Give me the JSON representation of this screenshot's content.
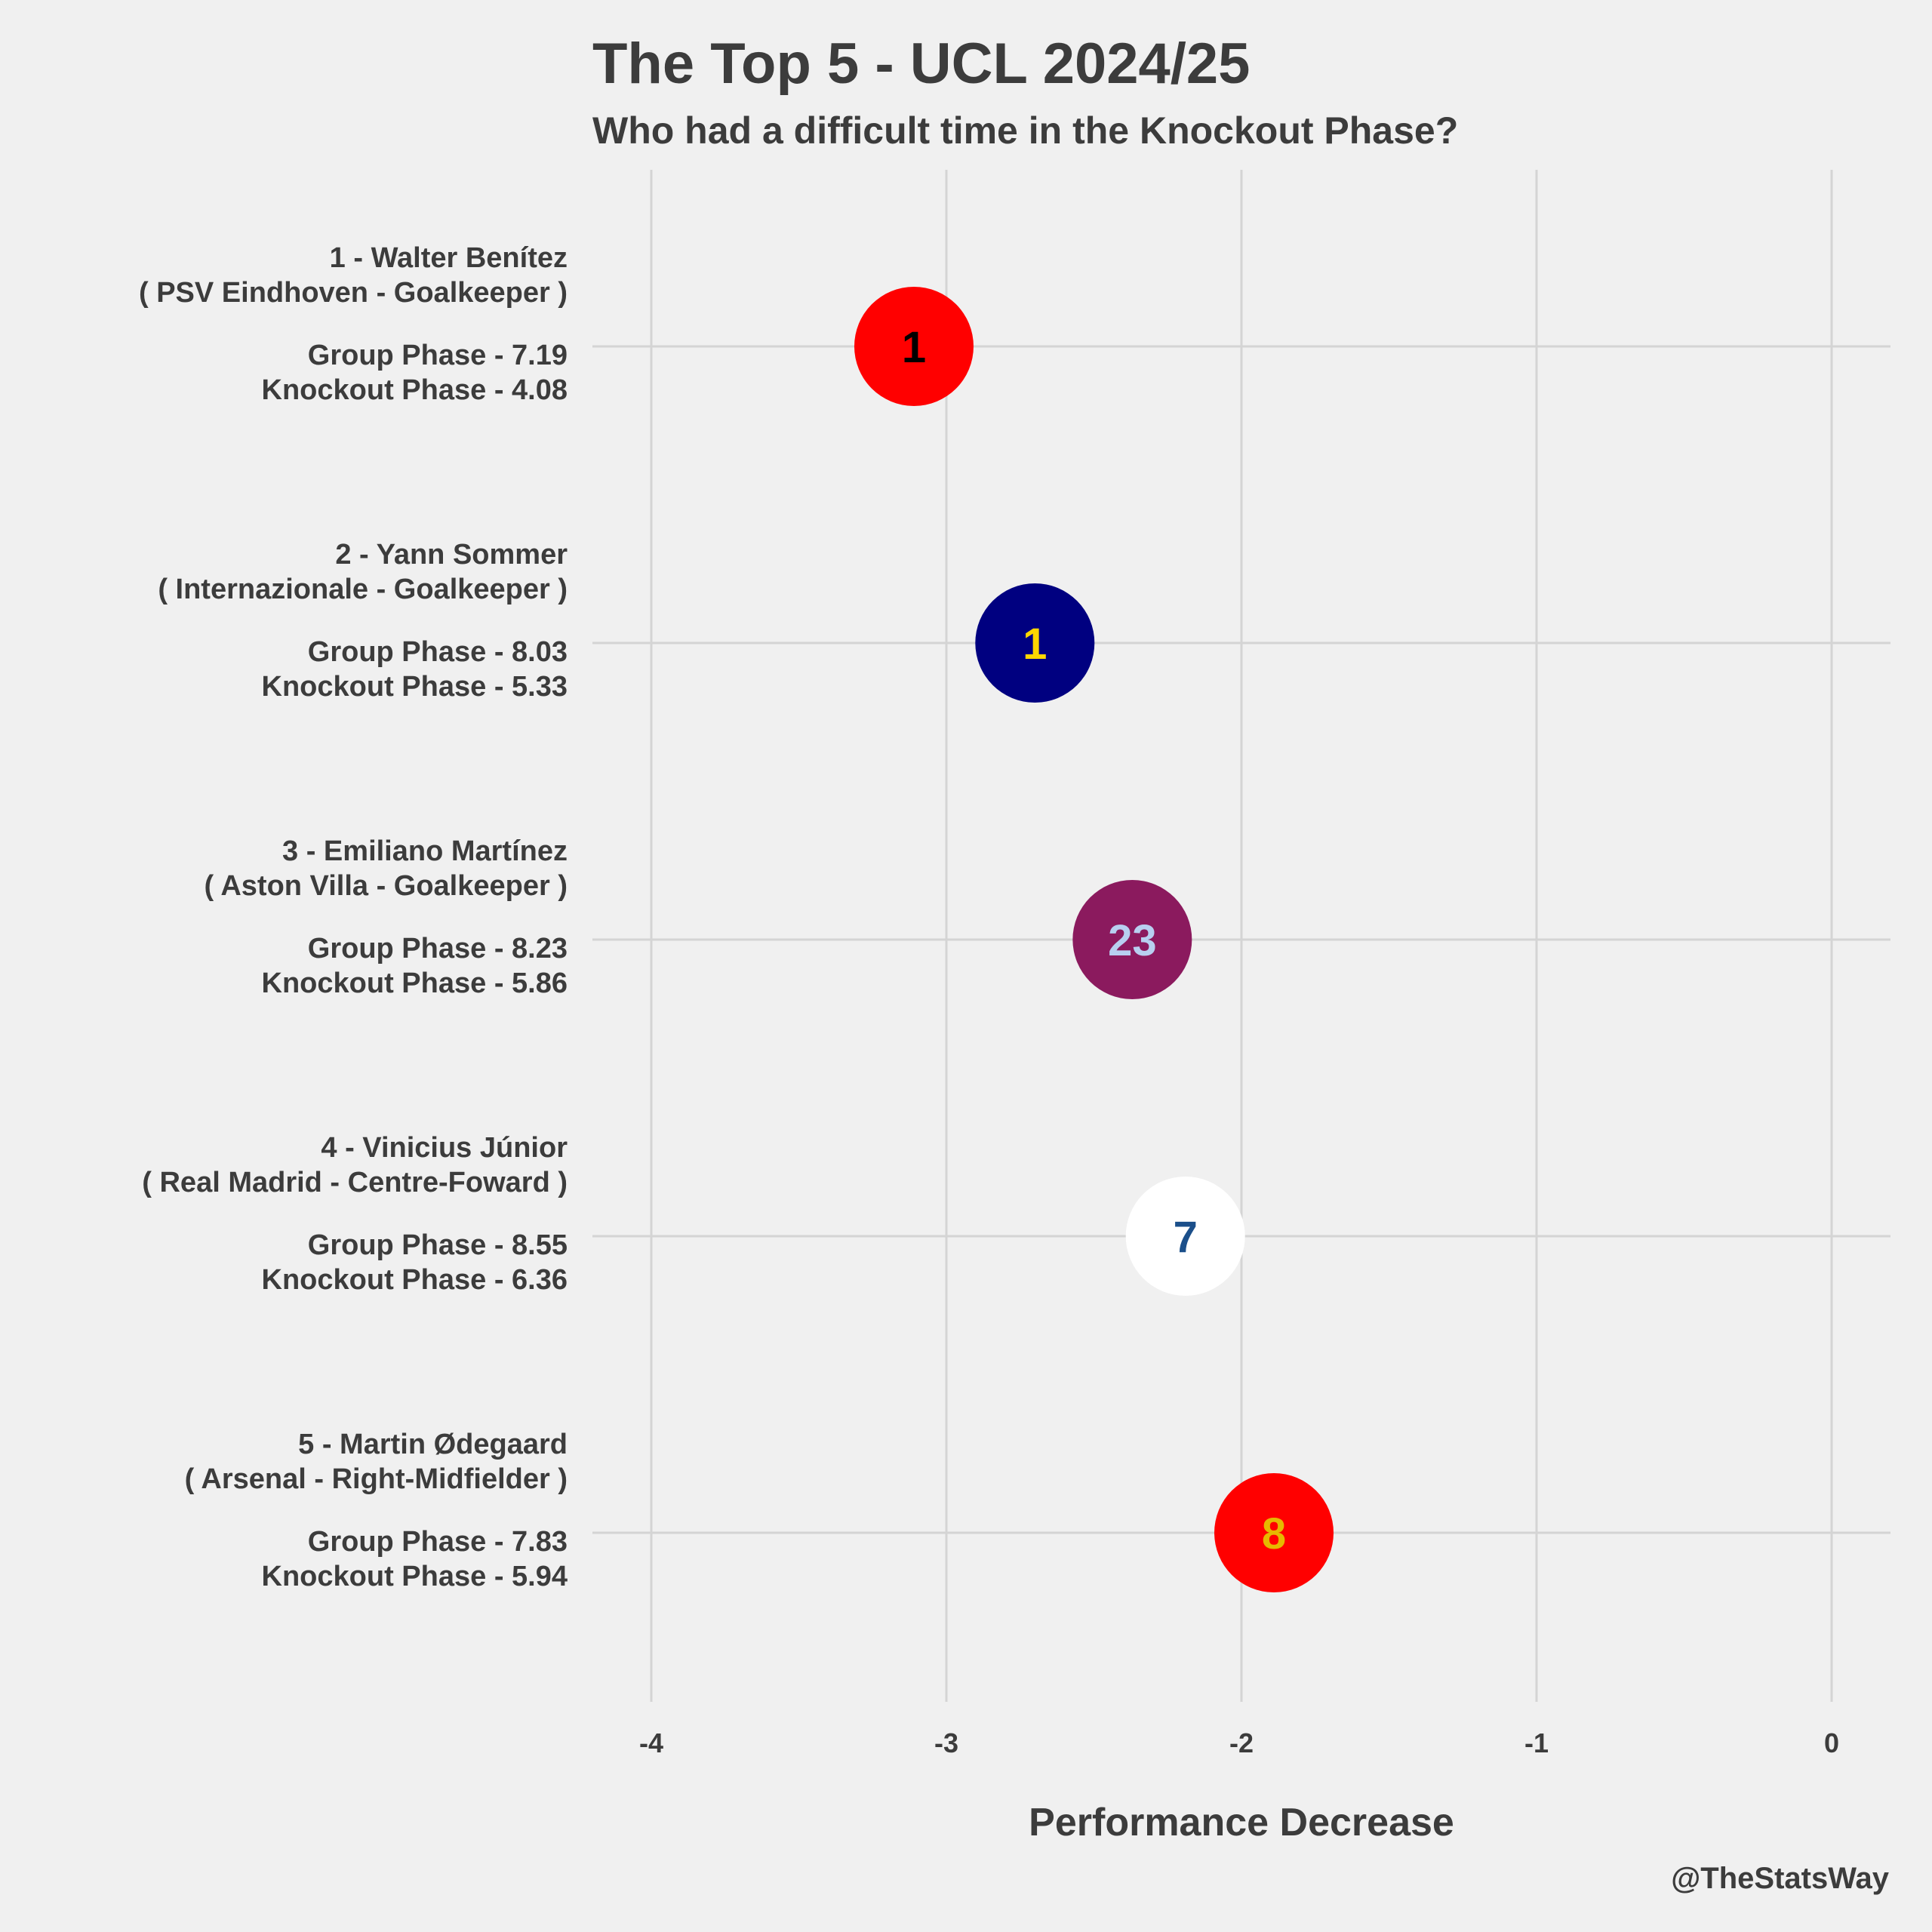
{
  "chart_data": {
    "type": "scatter",
    "title": "The Top 5 - UCL 2024/25",
    "subtitle": "Who had a difficult time in the Knockout Phase?",
    "xlabel": "Performance Decrease",
    "xlim": [
      -4.2,
      0.2
    ],
    "xticks": [
      "-4",
      "-3",
      "-2",
      "-1",
      "0"
    ],
    "xtick_values": [
      -4,
      -3,
      -2,
      -1,
      0
    ],
    "grid": true,
    "credit": "@TheStatsWay",
    "players": [
      {
        "line1": "1 - Walter Benítez",
        "line2": "( PSV Eindhoven - Goalkeeper )",
        "line3": "Group Phase - 7.19",
        "line4": "Knockout Phase - 4.08",
        "value": -3.11,
        "number": "1",
        "fill": "#ff0000",
        "text_color": "#000000"
      },
      {
        "line1": "2 - Yann Sommer",
        "line2": "( Internazionale - Goalkeeper )",
        "line3": "Group Phase - 8.03",
        "line4": "Knockout Phase - 5.33",
        "value": -2.7,
        "number": "1",
        "fill": "#000080",
        "text_color": "#ffd700"
      },
      {
        "line1": "3 - Emiliano Martínez",
        "line2": "( Aston Villa - Goalkeeper )",
        "line3": "Group Phase - 8.23",
        "line4": "Knockout Phase - 5.86",
        "value": -2.37,
        "number": "23",
        "fill": "#8b1a5e",
        "text_color": "#b8cff0"
      },
      {
        "line1": "4 - Vinicius Júnior",
        "line2": "( Real Madrid - Centre-Foward )",
        "line3": "Group Phase - 8.55",
        "line4": "Knockout Phase - 6.36",
        "value": -2.19,
        "number": "7",
        "fill": "#ffffff",
        "text_color": "#1b4f8a"
      },
      {
        "line1": "5 - Martin Ødegaard",
        "line2": "( Arsenal - Right-Midfielder )",
        "line3": "Group Phase - 7.83",
        "line4": "Knockout Phase - 5.94",
        "value": -1.89,
        "number": "8",
        "fill": "#ff0000",
        "text_color": "#e6b800"
      }
    ]
  }
}
